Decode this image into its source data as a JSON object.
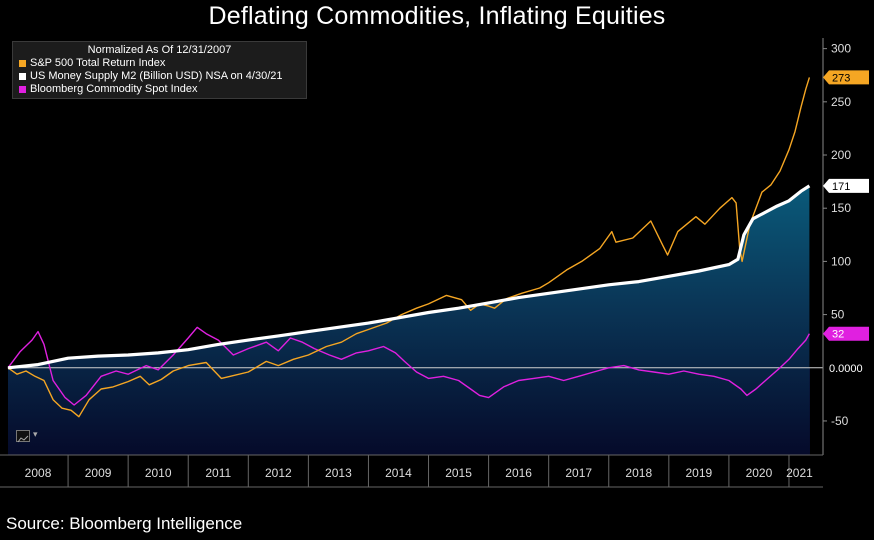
{
  "title": "Deflating Commodities, Inflating Equities",
  "source": "Source: Bloomberg Intelligence",
  "legend": {
    "note": "Normalized As Of 12/31/2007",
    "items": [
      {
        "label": "S&P 500 Total Return Index",
        "color": "#f5a623"
      },
      {
        "label": "US Money Supply M2 (Billion USD) NSA on 4/30/21",
        "color": "#ffffff"
      },
      {
        "label": "Bloomberg Commodity Spot Index",
        "color": "#e020e0"
      }
    ]
  },
  "icons": {
    "zoom": "line-chart-icon",
    "caret": "chevron-down-icon"
  },
  "chart_data": {
    "type": "line",
    "title": "Deflating Commodities, Inflating Equities",
    "x_label_ticks": [
      "2008",
      "2009",
      "2010",
      "2011",
      "2012",
      "2013",
      "2014",
      "2015",
      "2016",
      "2017",
      "2018",
      "2019",
      "2020",
      "2021"
    ],
    "x_range": [
      2008.0,
      2021.35
    ],
    "ylim": [
      -82,
      310
    ],
    "y_ticks": [
      300,
      250,
      200,
      150,
      100,
      50,
      -50
    ],
    "zero_label": "0.0000",
    "series": [
      {
        "name": "S&P 500 Total Return Index",
        "color": "#f5a623",
        "last_label": "273",
        "points": [
          [
            2008.0,
            0
          ],
          [
            2008.15,
            -6
          ],
          [
            2008.3,
            -3
          ],
          [
            2008.45,
            -8
          ],
          [
            2008.6,
            -12
          ],
          [
            2008.75,
            -30
          ],
          [
            2008.9,
            -38
          ],
          [
            2009.05,
            -40
          ],
          [
            2009.18,
            -46
          ],
          [
            2009.35,
            -30
          ],
          [
            2009.55,
            -20
          ],
          [
            2009.75,
            -18
          ],
          [
            2010.0,
            -13
          ],
          [
            2010.2,
            -8
          ],
          [
            2010.35,
            -16
          ],
          [
            2010.55,
            -11
          ],
          [
            2010.75,
            -3
          ],
          [
            2011.0,
            2
          ],
          [
            2011.3,
            5
          ],
          [
            2011.55,
            -10
          ],
          [
            2011.7,
            -8
          ],
          [
            2012.0,
            -4
          ],
          [
            2012.3,
            6
          ],
          [
            2012.5,
            2
          ],
          [
            2012.75,
            8
          ],
          [
            2013.0,
            12
          ],
          [
            2013.3,
            20
          ],
          [
            2013.55,
            24
          ],
          [
            2013.8,
            32
          ],
          [
            2014.0,
            36
          ],
          [
            2014.3,
            42
          ],
          [
            2014.55,
            50
          ],
          [
            2014.8,
            56
          ],
          [
            2015.0,
            60
          ],
          [
            2015.3,
            68
          ],
          [
            2015.55,
            64
          ],
          [
            2015.7,
            54
          ],
          [
            2015.85,
            60
          ],
          [
            2016.0,
            58
          ],
          [
            2016.1,
            56
          ],
          [
            2016.3,
            65
          ],
          [
            2016.55,
            70
          ],
          [
            2016.85,
            75
          ],
          [
            2017.0,
            80
          ],
          [
            2017.3,
            92
          ],
          [
            2017.55,
            100
          ],
          [
            2017.85,
            112
          ],
          [
            2018.05,
            128
          ],
          [
            2018.12,
            118
          ],
          [
            2018.4,
            122
          ],
          [
            2018.7,
            138
          ],
          [
            2018.9,
            115
          ],
          [
            2018.98,
            106
          ],
          [
            2019.15,
            128
          ],
          [
            2019.45,
            142
          ],
          [
            2019.6,
            135
          ],
          [
            2019.85,
            150
          ],
          [
            2020.05,
            160
          ],
          [
            2020.12,
            155
          ],
          [
            2020.18,
            112
          ],
          [
            2020.22,
            100
          ],
          [
            2020.35,
            135
          ],
          [
            2020.55,
            165
          ],
          [
            2020.7,
            172
          ],
          [
            2020.85,
            185
          ],
          [
            2021.0,
            205
          ],
          [
            2021.1,
            222
          ],
          [
            2021.2,
            245
          ],
          [
            2021.28,
            262
          ],
          [
            2021.34,
            273
          ]
        ]
      },
      {
        "name": "US Money Supply M2 (Billion USD) NSA on 4/30/21",
        "color": "#ffffff",
        "last_label": "171",
        "points": [
          [
            2008.0,
            0
          ],
          [
            2008.5,
            3
          ],
          [
            2009.0,
            9
          ],
          [
            2009.5,
            11
          ],
          [
            2010.0,
            12
          ],
          [
            2010.5,
            14
          ],
          [
            2011.0,
            17
          ],
          [
            2011.5,
            22
          ],
          [
            2012.0,
            26
          ],
          [
            2012.5,
            30
          ],
          [
            2013.0,
            34
          ],
          [
            2013.5,
            38
          ],
          [
            2014.0,
            42
          ],
          [
            2014.5,
            47
          ],
          [
            2015.0,
            52
          ],
          [
            2015.5,
            56
          ],
          [
            2016.0,
            61
          ],
          [
            2016.5,
            66
          ],
          [
            2017.0,
            70
          ],
          [
            2017.5,
            74
          ],
          [
            2018.0,
            78
          ],
          [
            2018.5,
            81
          ],
          [
            2019.0,
            86
          ],
          [
            2019.5,
            91
          ],
          [
            2020.0,
            97
          ],
          [
            2020.15,
            102
          ],
          [
            2020.25,
            125
          ],
          [
            2020.4,
            140
          ],
          [
            2020.6,
            146
          ],
          [
            2020.8,
            152
          ],
          [
            2021.0,
            157
          ],
          [
            2021.2,
            166
          ],
          [
            2021.34,
            171
          ]
        ]
      },
      {
        "name": "Bloomberg Commodity Spot Index",
        "color": "#e020e0",
        "last_label": "32",
        "points": [
          [
            2008.0,
            0
          ],
          [
            2008.2,
            15
          ],
          [
            2008.4,
            26
          ],
          [
            2008.5,
            34
          ],
          [
            2008.6,
            22
          ],
          [
            2008.75,
            -12
          ],
          [
            2008.95,
            -28
          ],
          [
            2009.1,
            -35
          ],
          [
            2009.3,
            -26
          ],
          [
            2009.55,
            -8
          ],
          [
            2009.8,
            -3
          ],
          [
            2010.0,
            -6
          ],
          [
            2010.3,
            2
          ],
          [
            2010.5,
            -2
          ],
          [
            2010.75,
            12
          ],
          [
            2011.0,
            28
          ],
          [
            2011.15,
            38
          ],
          [
            2011.3,
            32
          ],
          [
            2011.5,
            26
          ],
          [
            2011.75,
            12
          ],
          [
            2012.0,
            18
          ],
          [
            2012.3,
            24
          ],
          [
            2012.5,
            16
          ],
          [
            2012.7,
            28
          ],
          [
            2012.9,
            24
          ],
          [
            2013.1,
            18
          ],
          [
            2013.35,
            12
          ],
          [
            2013.55,
            8
          ],
          [
            2013.8,
            14
          ],
          [
            2014.0,
            16
          ],
          [
            2014.25,
            20
          ],
          [
            2014.45,
            14
          ],
          [
            2014.6,
            6
          ],
          [
            2014.8,
            -4
          ],
          [
            2015.0,
            -10
          ],
          [
            2015.25,
            -8
          ],
          [
            2015.5,
            -12
          ],
          [
            2015.7,
            -20
          ],
          [
            2015.85,
            -26
          ],
          [
            2016.0,
            -28
          ],
          [
            2016.25,
            -18
          ],
          [
            2016.5,
            -12
          ],
          [
            2016.75,
            -10
          ],
          [
            2017.0,
            -8
          ],
          [
            2017.25,
            -12
          ],
          [
            2017.5,
            -8
          ],
          [
            2017.75,
            -4
          ],
          [
            2018.0,
            0
          ],
          [
            2018.25,
            2
          ],
          [
            2018.5,
            -2
          ],
          [
            2018.75,
            -4
          ],
          [
            2019.0,
            -6
          ],
          [
            2019.25,
            -3
          ],
          [
            2019.5,
            -6
          ],
          [
            2019.75,
            -8
          ],
          [
            2020.0,
            -12
          ],
          [
            2020.2,
            -20
          ],
          [
            2020.3,
            -26
          ],
          [
            2020.45,
            -20
          ],
          [
            2020.65,
            -10
          ],
          [
            2020.85,
            0
          ],
          [
            2021.0,
            8
          ],
          [
            2021.15,
            18
          ],
          [
            2021.28,
            26
          ],
          [
            2021.34,
            32
          ]
        ]
      }
    ]
  }
}
